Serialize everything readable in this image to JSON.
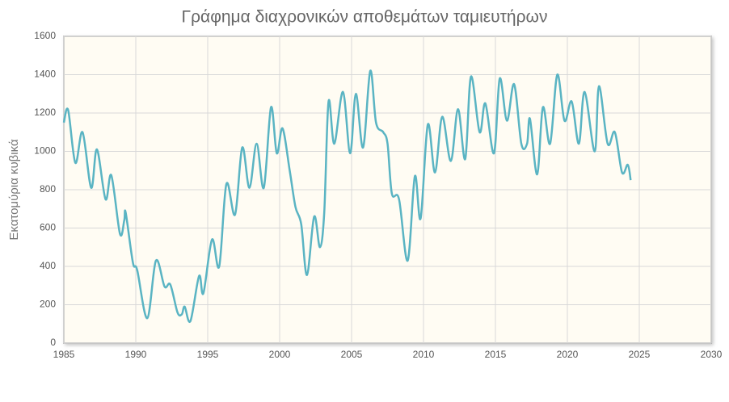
{
  "chart_data": {
    "type": "line",
    "title": "Γράφημα διαχρονικών αποθεμάτων ταμιευτήρων",
    "y_label": "Εκατομύρια κυβικά",
    "x": [
      1985.0,
      1985.3,
      1985.8,
      1986.3,
      1986.9,
      1987.3,
      1987.9,
      1988.3,
      1988.9,
      1989.2,
      1989.3,
      1989.8,
      1990.1,
      1990.8,
      1991.4,
      1992.0,
      1992.4,
      1992.9,
      1993.2,
      1993.4,
      1993.8,
      1994.4,
      1994.7,
      1995.3,
      1995.8,
      1996.3,
      1996.9,
      1997.4,
      1997.9,
      1998.4,
      1998.9,
      1999.4,
      1999.8,
      2000.2,
      2000.7,
      2001.1,
      2001.5,
      2001.9,
      2002.4,
      2002.8,
      2003.1,
      2003.4,
      2003.8,
      2004.4,
      2004.9,
      2005.3,
      2005.8,
      2006.3,
      2006.7,
      2007.2,
      2007.5,
      2007.8,
      2008.3,
      2008.9,
      2009.4,
      2009.8,
      2010.3,
      2010.8,
      2011.3,
      2011.9,
      2012.4,
      2012.9,
      2013.3,
      2013.9,
      2014.3,
      2014.9,
      2015.3,
      2015.8,
      2016.3,
      2016.8,
      2017.2,
      2017.4,
      2017.9,
      2018.3,
      2018.8,
      2019.3,
      2019.8,
      2020.3,
      2020.8,
      2021.2,
      2021.9,
      2022.2,
      2022.8,
      2023.3,
      2023.8,
      2024.2,
      2024.4
    ],
    "series": [
      {
        "color": "#5ab4c3",
        "values": [
          1150,
          1215,
          940,
          1100,
          810,
          1010,
          750,
          875,
          570,
          640,
          680,
          420,
          380,
          130,
          430,
          295,
          305,
          160,
          150,
          190,
          115,
          350,
          260,
          540,
          400,
          830,
          670,
          1020,
          810,
          1040,
          810,
          1230,
          990,
          1120,
          900,
          710,
          620,
          355,
          660,
          500,
          680,
          1260,
          1040,
          1310,
          990,
          1300,
          1020,
          1420,
          1150,
          1100,
          1040,
          780,
          750,
          430,
          870,
          650,
          1140,
          890,
          1180,
          950,
          1220,
          960,
          1390,
          1100,
          1250,
          990,
          1380,
          1160,
          1350,
          1040,
          1040,
          1170,
          880,
          1230,
          1040,
          1400,
          1160,
          1260,
          1040,
          1310,
          1000,
          1340,
          1040,
          1100,
          890,
          930,
          850
        ]
      }
    ],
    "xlim": [
      1985,
      2030
    ],
    "xticks": [
      1985,
      1990,
      1995,
      2000,
      2005,
      2010,
      2015,
      2020,
      2025,
      2030
    ],
    "ylim": [
      0,
      1600
    ],
    "yticks": [
      0,
      200,
      400,
      600,
      800,
      1000,
      1200,
      1400,
      1600
    ],
    "grid": true
  }
}
